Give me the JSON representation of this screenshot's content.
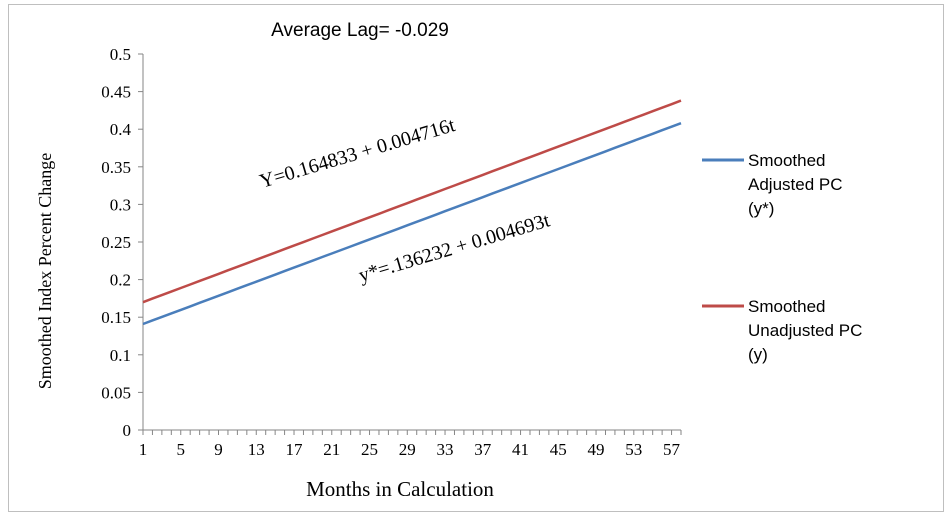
{
  "chart_data": {
    "type": "line",
    "title": "Average Lag= -0.029",
    "xlabel": "Months in Calculation",
    "ylabel": "Smoothed Index Percent Change",
    "ylim": [
      0,
      0.5
    ],
    "y_ticks": [
      "0",
      "0.05",
      "0.1",
      "0.15",
      "0.2",
      "0.25",
      "0.3",
      "0.35",
      "0.4",
      "0.45",
      "0.5"
    ],
    "x_range": [
      1,
      58
    ],
    "x_ticks": [
      "1",
      "5",
      "9",
      "13",
      "17",
      "21",
      "25",
      "29",
      "33",
      "37",
      "41",
      "45",
      "49",
      "53",
      "57"
    ],
    "grid": false,
    "legend_position": "right",
    "series": [
      {
        "name_lines": [
          "Smoothed",
          "Adjusted PC",
          "(y*)"
        ],
        "color": "#4a7ebb",
        "intercept": 0.136232,
        "slope": 0.004693,
        "start": 0.141,
        "end": 0.408
      },
      {
        "name_lines": [
          "Smoothed",
          "Unadjusted PC",
          "(y)"
        ],
        "color": "#be4b48",
        "intercept": 0.164833,
        "slope": 0.004716,
        "start": 0.17,
        "end": 0.438
      }
    ],
    "annotations": [
      "Y=0.164833 + 0.004716t",
      "y*=.136232 + 0.004693t"
    ]
  }
}
